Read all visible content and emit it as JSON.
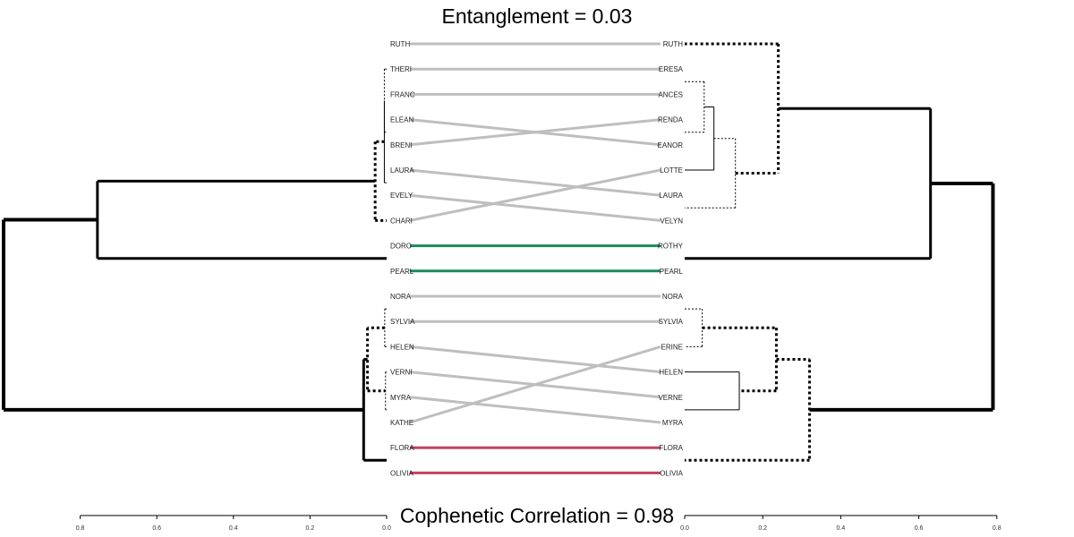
{
  "title": "Entanglement = 0.03",
  "subtitle": "Cophenetic Correlation = 0.98",
  "chart_data": {
    "type": "tanglegram",
    "left_axis": {
      "range": [
        0.8,
        0
      ],
      "ticks": [
        "0.8",
        "0.6",
        "0.4",
        "0.2",
        "0.0"
      ]
    },
    "right_axis": {
      "range": [
        0,
        0.8
      ],
      "ticks": [
        "0.0",
        "0.2",
        "0.4",
        "0.6",
        "0.8"
      ]
    },
    "left_labels": [
      "RUTH",
      "THERESA",
      "FRANCES",
      "ELEANOR",
      "BRENDA",
      "LAURA",
      "EVELYN",
      "CHARLOTTE",
      "DOROTHY",
      "PEARL",
      "NORA",
      "SYLVIA",
      "HELEN",
      "VERNE",
      "MYRA",
      "KATHERINE",
      "FLORA",
      "OLIVIA"
    ],
    "left_labels_shown": [
      "RUTH",
      "THERI",
      "FRANC",
      "ELEAN",
      "BRENI",
      "LAURA",
      "EVELY",
      "CHARI",
      "DORO",
      "PEARL",
      "NORA",
      "SYLVIA",
      "HELEN",
      "VERNI",
      "MYRA",
      "KATHE",
      "FLORA",
      "OLIVIA"
    ],
    "right_labels": [
      "RUTH",
      "THERESA",
      "FRANCES",
      "BRENDA",
      "ELEANOR",
      "CHARLOTTE",
      "LAURA",
      "EVELYN",
      "DOROTHY",
      "PEARL",
      "NORA",
      "SYLVIA",
      "KATHERINE",
      "HELEN",
      "VERNE",
      "MYRA",
      "FLORA",
      "OLIVIA"
    ],
    "right_labels_shown": [
      "RUTH",
      "ERESA",
      "ANCES",
      "RENDA",
      "EANOR",
      "LOTTE",
      "LAURA",
      "VELYN",
      "ROTHY",
      "PEARL",
      "NORA",
      "SYLVIA",
      "ERINE",
      "HELEN",
      "VERNE",
      "MYRA",
      "FLORA",
      "OLIVIA"
    ],
    "connections": [
      {
        "left": "RUTH",
        "right": "RUTH",
        "color": "#bebebe"
      },
      {
        "left": "THERESA",
        "right": "THERESA",
        "color": "#bebebe"
      },
      {
        "left": "FRANCES",
        "right": "FRANCES",
        "color": "#bebebe"
      },
      {
        "left": "ELEANOR",
        "right": "ELEANOR",
        "color": "#bebebe"
      },
      {
        "left": "BRENDA",
        "right": "BRENDA",
        "color": "#bebebe"
      },
      {
        "left": "LAURA",
        "right": "LAURA",
        "color": "#bebebe"
      },
      {
        "left": "EVELYN",
        "right": "EVELYN",
        "color": "#bebebe"
      },
      {
        "left": "CHARLOTTE",
        "right": "CHARLOTTE",
        "color": "#bebebe"
      },
      {
        "left": "DOROTHY",
        "right": "DOROTHY",
        "color": "#1b8a5a"
      },
      {
        "left": "PEARL",
        "right": "PEARL",
        "color": "#1b8a5a"
      },
      {
        "left": "NORA",
        "right": "NORA",
        "color": "#bebebe"
      },
      {
        "left": "SYLVIA",
        "right": "SYLVIA",
        "color": "#bebebe"
      },
      {
        "left": "HELEN",
        "right": "HELEN",
        "color": "#bebebe"
      },
      {
        "left": "VERNE",
        "right": "VERNE",
        "color": "#bebebe"
      },
      {
        "left": "MYRA",
        "right": "MYRA",
        "color": "#bebebe"
      },
      {
        "left": "KATHERINE",
        "right": "KATHERINE",
        "color": "#bebebe"
      },
      {
        "left": "FLORA",
        "right": "FLORA",
        "color": "#c0445f"
      },
      {
        "left": "OLIVIA",
        "right": "OLIVIA",
        "color": "#c0445f"
      }
    ],
    "left_tree": [
      {
        "id": "L_RF",
        "members": [
          "RUTH",
          "FRANCES"
        ],
        "height": 0.0015,
        "style": "solid"
      },
      {
        "id": "L_RFT",
        "members": [
          "RUTH",
          "FRANCES",
          "THERESA"
        ],
        "height": 0.003,
        "style": "solid"
      },
      {
        "id": "L_EB",
        "members": [
          "ELEANOR",
          "BRENDA"
        ],
        "height": 0.002,
        "style": "solid"
      },
      {
        "id": "L_RFTEB",
        "members": [
          "RUTH",
          "FRANCES",
          "THERESA",
          "ELEANOR",
          "BRENDA"
        ],
        "height": 0.006,
        "style": "dotted"
      },
      {
        "id": "L_LE",
        "members": [
          "LAURA",
          "EVELYN"
        ],
        "height": 0.002,
        "style": "solid"
      },
      {
        "id": "L_RFTEBLE",
        "members": [
          "RUTH",
          "FRANCES",
          "THERESA",
          "ELEANOR",
          "BRENDA",
          "LAURA",
          "EVELYN"
        ],
        "height": 0.006,
        "style": "solid"
      },
      {
        "id": "L_TOP1",
        "members": [
          "RUTH",
          "FRANCES",
          "THERESA",
          "ELEANOR",
          "BRENDA",
          "LAURA",
          "EVELYN",
          "CHARLOTTE"
        ],
        "height": 0.03,
        "style": "dotted"
      },
      {
        "id": "L_DP",
        "members": [
          "DOROTHY",
          "PEARL"
        ],
        "height": 0.23,
        "style": "solid"
      },
      {
        "id": "L_TOP",
        "members": [
          "RUTH",
          "FRANCES",
          "THERESA",
          "ELEANOR",
          "BRENDA",
          "LAURA",
          "EVELYN",
          "CHARLOTTE",
          "DOROTHY",
          "PEARL"
        ],
        "height": 0.755,
        "style": "solid"
      },
      {
        "id": "L_NS",
        "members": [
          "NORA",
          "SYLVIA"
        ],
        "height": 0.001,
        "style": "solid"
      },
      {
        "id": "L_NSH",
        "members": [
          "NORA",
          "SYLVIA",
          "HELEN"
        ],
        "height": 0.005,
        "style": "dotted"
      },
      {
        "id": "L_MK",
        "members": [
          "MYRA",
          "KATHERINE"
        ],
        "height": 0.001,
        "style": "solid"
      },
      {
        "id": "L_VMK",
        "members": [
          "VERNE",
          "MYRA",
          "KATHERINE"
        ],
        "height": 0.003,
        "style": "dotted"
      },
      {
        "id": "L_BOT1",
        "members": [
          "NORA",
          "SYLVIA",
          "HELEN",
          "VERNE",
          "MYRA",
          "KATHERINE"
        ],
        "height": 0.05,
        "style": "dotted"
      },
      {
        "id": "L_FO",
        "members": [
          "FLORA",
          "OLIVIA"
        ],
        "height": 0.001,
        "style": "solid"
      },
      {
        "id": "L_BOT",
        "members": [
          "NORA",
          "SYLVIA",
          "HELEN",
          "VERNE",
          "MYRA",
          "KATHERINE",
          "FLORA",
          "OLIVIA"
        ],
        "height": 0.06,
        "style": "solid"
      },
      {
        "id": "L_ROOT",
        "members": [
          "ALL"
        ],
        "height": 1.0,
        "style": "solid"
      }
    ],
    "right_tree": [
      {
        "id": "R_TF",
        "members": [
          "THERESA",
          "FRANCES"
        ],
        "height": 0.045,
        "style": "solid"
      },
      {
        "id": "R_BE",
        "members": [
          "BRENDA",
          "ELEANOR"
        ],
        "height": 0.045,
        "style": "solid"
      },
      {
        "id": "R_TFBE",
        "members": [
          "THERESA",
          "FRANCES",
          "BRENDA",
          "ELEANOR"
        ],
        "height": 0.05,
        "style": "dotted"
      },
      {
        "id": "R_TFBEC",
        "members": [
          "THERESA",
          "FRANCES",
          "BRENDA",
          "ELEANOR",
          "CHARLOTTE"
        ],
        "height": 0.075,
        "style": "solid"
      },
      {
        "id": "R_LE",
        "members": [
          "LAURA",
          "EVELYN"
        ],
        "height": 0.035,
        "style": "solid"
      },
      {
        "id": "R_GRP1",
        "members": [
          "THERESA",
          "FRANCES",
          "BRENDA",
          "ELEANOR",
          "CHARLOTTE",
          "LAURA",
          "EVELYN"
        ],
        "height": 0.13,
        "style": "dotted"
      },
      {
        "id": "R_TOP1",
        "members": [
          "RUTH",
          "THERESA",
          "FRANCES",
          "BRENDA",
          "ELEANOR",
          "CHARLOTTE",
          "LAURA",
          "EVELYN"
        ],
        "height": 0.24,
        "style": "dotted"
      },
      {
        "id": "R_DP",
        "members": [
          "DOROTHY",
          "PEARL"
        ],
        "height": 0.1,
        "style": "solid"
      },
      {
        "id": "R_TOP",
        "members": [
          "RUTH",
          "THERESA",
          "FRANCES",
          "BRENDA",
          "ELEANOR",
          "CHARLOTTE",
          "LAURA",
          "EVELYN",
          "DOROTHY",
          "PEARL"
        ],
        "height": 0.63,
        "style": "solid"
      },
      {
        "id": "R_NS",
        "members": [
          "NORA",
          "SYLVIA"
        ],
        "height": 0.05,
        "style": "solid"
      },
      {
        "id": "R_NSK",
        "members": [
          "NORA",
          "SYLVIA",
          "KATHERINE"
        ],
        "height": 0.045,
        "style": "dotted"
      },
      {
        "id": "R_VM",
        "members": [
          "VERNE",
          "MYRA"
        ],
        "height": 0.08,
        "style": "solid"
      },
      {
        "id": "R_HVM",
        "members": [
          "HELEN",
          "VERNE",
          "MYRA"
        ],
        "height": 0.14,
        "style": "solid"
      },
      {
        "id": "R_BOT1",
        "members": [
          "NORA",
          "SYLVIA",
          "KATHERINE",
          "HELEN",
          "VERNE",
          "MYRA"
        ],
        "height": 0.235,
        "style": "dotted"
      },
      {
        "id": "R_FO",
        "members": [
          "FLORA",
          "OLIVIA"
        ],
        "height": 0.001,
        "style": "solid"
      },
      {
        "id": "R_BOT",
        "members": [
          "NORA",
          "SYLVIA",
          "KATHERINE",
          "HELEN",
          "VERNE",
          "MYRA",
          "FLORA",
          "OLIVIA"
        ],
        "height": 0.32,
        "style": "dotted"
      },
      {
        "id": "R_ROOT",
        "members": [
          "ALL"
        ],
        "height": 0.79,
        "style": "solid"
      }
    ]
  }
}
